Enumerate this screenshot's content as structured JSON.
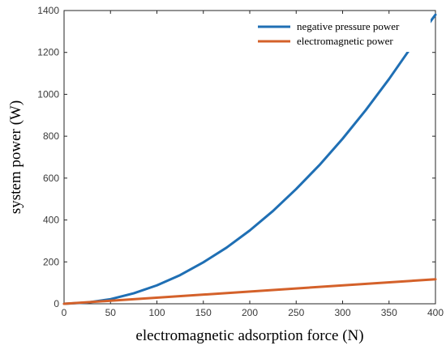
{
  "chart_data": {
    "type": "line",
    "title": "",
    "xlabel": "electromagnetic adsorption force (N)",
    "ylabel": "system power (W)",
    "xlim": [
      0,
      400
    ],
    "ylim": [
      0,
      1400
    ],
    "x_ticks": [
      0,
      50,
      100,
      150,
      200,
      250,
      300,
      350,
      400
    ],
    "y_ticks": [
      0,
      200,
      400,
      600,
      800,
      1000,
      1200,
      1400
    ],
    "grid": false,
    "legend_position": "top-right",
    "series": [
      {
        "name": "negative pressure power",
        "color": "#1f6fb4",
        "x": [
          0,
          25,
          50,
          75,
          100,
          125,
          150,
          175,
          200,
          225,
          250,
          275,
          300,
          325,
          350,
          375,
          400
        ],
        "y": [
          0,
          6,
          22,
          50,
          88,
          137,
          198,
          268,
          350,
          443,
          548,
          662,
          788,
          925,
          1073,
          1232,
          1380
        ]
      },
      {
        "name": "electromagnetic power",
        "color": "#d4612a",
        "x": [
          0,
          400
        ],
        "y": [
          0,
          117
        ]
      }
    ]
  }
}
